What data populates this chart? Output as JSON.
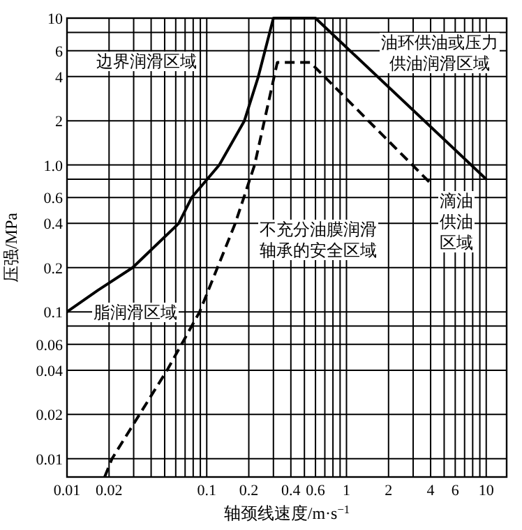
{
  "chart_data": {
    "type": "line",
    "xlabel": "轴颈线速度/m·s$^{−1}$",
    "ylabel": "压强/MPa",
    "log": "xy",
    "grid": true,
    "xlim": [
      0.01,
      14
    ],
    "ylim": [
      0.0075,
      10
    ],
    "xticks": [
      {
        "value": 0.01,
        "label": "0.01"
      },
      {
        "value": 0.02,
        "label": "0.02"
      },
      {
        "value": 0.03,
        "label": null
      },
      {
        "value": 0.04,
        "label": null
      },
      {
        "value": 0.05,
        "label": null
      },
      {
        "value": 0.06,
        "label": null
      },
      {
        "value": 0.07,
        "label": null
      },
      {
        "value": 0.08,
        "label": null
      },
      {
        "value": 0.09,
        "label": null
      },
      {
        "value": 0.1,
        "label": "0.1"
      },
      {
        "value": 0.2,
        "label": "0.2"
      },
      {
        "value": 0.3,
        "label": null
      },
      {
        "value": 0.4,
        "label": "0.4"
      },
      {
        "value": 0.5,
        "label": null
      },
      {
        "value": 0.6,
        "label": "0.6"
      },
      {
        "value": 0.7,
        "label": null
      },
      {
        "value": 0.8,
        "label": null
      },
      {
        "value": 0.9,
        "label": null
      },
      {
        "value": 1,
        "label": "1"
      },
      {
        "value": 2,
        "label": "2"
      },
      {
        "value": 3,
        "label": null
      },
      {
        "value": 4,
        "label": "4"
      },
      {
        "value": 5,
        "label": null
      },
      {
        "value": 6,
        "label": "6"
      },
      {
        "value": 7,
        "label": null
      },
      {
        "value": 8,
        "label": null
      },
      {
        "value": 9,
        "label": null
      },
      {
        "value": 10,
        "label": "10"
      }
    ],
    "yticks": [
      {
        "value": 0.01,
        "label": "0.01"
      },
      {
        "value": 0.02,
        "label": "0.02"
      },
      {
        "value": 0.04,
        "label": "0.04"
      },
      {
        "value": 0.06,
        "label": "0.06"
      },
      {
        "value": 0.08,
        "label": null
      },
      {
        "value": 0.1,
        "label": "0.1"
      },
      {
        "value": 0.2,
        "label": "0.2"
      },
      {
        "value": 0.4,
        "label": "0.4"
      },
      {
        "value": 0.6,
        "label": "0.6"
      },
      {
        "value": 0.8,
        "label": null
      },
      {
        "value": 1,
        "label": "1.0"
      },
      {
        "value": 2,
        "label": "2"
      },
      {
        "value": 4,
        "label": "4"
      },
      {
        "value": 6,
        "label": "6"
      },
      {
        "value": 8,
        "label": null
      },
      {
        "value": 10,
        "label": "10"
      }
    ],
    "series": [
      {
        "color": "#000000",
        "line_style": "solid",
        "x": [
          0.01,
          0.0166,
          0.0295,
          0.063,
          0.078,
          0.123,
          0.186,
          0.234,
          0.3,
          0.6,
          10
        ],
        "values": [
          0.1,
          0.14,
          0.2,
          0.4,
          0.6,
          1,
          2,
          4,
          10,
          10,
          0.8
        ]
      },
      {
        "color": "#000000",
        "line_style": "dashed",
        "x": [
          0.0186,
          0.021,
          0.052,
          0.089,
          0.16,
          0.22,
          0.32,
          0.55,
          4
        ],
        "values": [
          0.0075,
          0.01,
          0.04,
          0.1,
          0.4,
          1,
          5,
          5,
          0.75
        ]
      }
    ],
    "annotations": [
      "边界润滑区域",
      "油环供油或压力供油润滑区域",
      "不充分油膜润滑轴承的安全区域",
      "滴油供油区域",
      "脂润滑区域"
    ]
  }
}
